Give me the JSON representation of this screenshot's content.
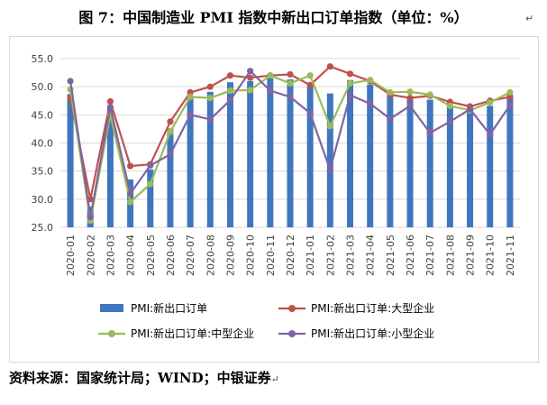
{
  "title": "图 7：中国制造业 PMI 指数中新出口订单指数（单位：%）",
  "title_mark": "↵",
  "source": "资料来源：国家统计局；WIND；中银证券",
  "source_mark": "↵",
  "colors": {
    "bar": "#3f76bf",
    "large": "#c0504d",
    "medium": "#9bbb59",
    "small": "#8064a2",
    "grid": "#d9d9d9",
    "axis_text": "#404040"
  },
  "chart_data": {
    "type": "bar+line",
    "title": "",
    "xlabel": "",
    "ylabel": "",
    "ylim": [
      25.0,
      55.0
    ],
    "yticks": [
      "25.0",
      "30.0",
      "35.0",
      "40.0",
      "45.0",
      "50.0",
      "55.0"
    ],
    "ytick_values": [
      25,
      30,
      35,
      40,
      45,
      50,
      55
    ],
    "grid": true,
    "legend_position": "bottom",
    "categories": [
      "2020-01",
      "2020-02",
      "2020-03",
      "2020-04",
      "2020-05",
      "2020-06",
      "2020-07",
      "2020-08",
      "2020-09",
      "2020-10",
      "2020-11",
      "2020-12",
      "2021-01",
      "2021-02",
      "2021-03",
      "2021-04",
      "2021-05",
      "2021-06",
      "2021-07",
      "2021-08",
      "2021-09",
      "2021-10",
      "2021-11"
    ],
    "series": [
      {
        "name": "PMI:新出口订单",
        "kind": "bar",
        "color_key": "bar",
        "values": [
          48.7,
          28.7,
          46.4,
          33.5,
          35.3,
          42.6,
          48.4,
          49.1,
          50.8,
          51.0,
          51.5,
          51.3,
          50.2,
          48.8,
          51.2,
          50.4,
          48.3,
          48.1,
          47.7,
          46.7,
          46.2,
          46.6,
          48.5
        ]
      },
      {
        "name": "PMI:新出口订单:大型企业",
        "kind": "line",
        "color_key": "large",
        "values": [
          48.0,
          30.0,
          47.4,
          35.9,
          36.2,
          43.8,
          49.0,
          50.0,
          52.0,
          51.6,
          52.0,
          52.2,
          50.3,
          53.6,
          52.3,
          51.0,
          48.6,
          48.0,
          48.4,
          47.3,
          46.5,
          47.5,
          48.2
        ]
      },
      {
        "name": "PMI:新出口订单:中型企业",
        "kind": "line",
        "color_key": "medium",
        "values": [
          49.5,
          26.2,
          45.0,
          29.5,
          32.7,
          42.0,
          48.2,
          48.0,
          49.3,
          49.4,
          52.0,
          50.6,
          52.0,
          43.0,
          50.6,
          51.2,
          49.0,
          49.1,
          48.6,
          46.6,
          45.8,
          47.2,
          49.0
        ]
      },
      {
        "name": "PMI:新出口订单:小型企业",
        "kind": "line",
        "color_key": "small",
        "values": [
          51.0,
          26.8,
          46.4,
          31.0,
          36.0,
          38.0,
          45.0,
          44.2,
          47.6,
          52.8,
          49.3,
          48.2,
          45.3,
          35.2,
          48.5,
          47.0,
          44.3,
          46.6,
          41.8,
          43.8,
          46.0,
          41.5,
          46.7
        ]
      }
    ],
    "legend": [
      "PMI:新出口订单",
      "PMI:新出口订单:大型企业",
      "PMI:新出口订单:中型企业",
      "PMI:新出口订单:小型企业"
    ]
  }
}
